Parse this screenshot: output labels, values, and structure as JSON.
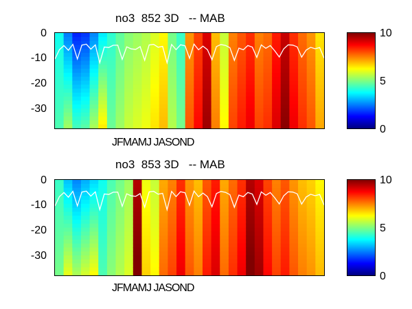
{
  "panels": [
    {
      "title": "no3  852 3D   -- MAB",
      "xlabel": "JFMAMJ JASOND",
      "yticks": [
        "0",
        "-10",
        "-20",
        "-30"
      ],
      "cbar_ticks": [
        "10",
        "5",
        "0"
      ]
    },
    {
      "title": "no3  853 3D   -- MAB",
      "xlabel": "JFMAMJ JASOND",
      "yticks": [
        "0",
        "-10",
        "-20",
        "-30"
      ],
      "cbar_ticks": [
        "10",
        "5",
        "0"
      ]
    }
  ],
  "chart_data": [
    {
      "type": "heatmap",
      "title": "no3  852 3D   -- MAB",
      "xlabel": "JFMAMJ JASOND",
      "ylabel": "",
      "ylim": [
        -37,
        0
      ],
      "yticks": [
        0,
        -10,
        -20,
        -30
      ],
      "colorbar": {
        "range": [
          0,
          10
        ],
        "ticks": [
          0,
          5,
          10
        ],
        "colormap": "jet"
      },
      "x_months": [
        "J",
        "F",
        "M",
        "A",
        "M",
        "J",
        "J",
        "A",
        "S",
        "O",
        "N",
        "D"
      ],
      "column_values_surface": [
        4.2,
        2.5,
        1.6,
        1.8,
        2.6,
        3.6,
        4.5,
        5.0,
        5.4,
        5.6,
        5.8,
        6.2,
        6.6,
        5.2,
        4.6,
        7.6,
        8.4,
        9.4,
        7.2,
        6.0,
        7.8,
        8.2,
        8.6,
        7.8,
        8.0,
        8.8,
        9.6,
        8.6,
        8.0,
        7.6,
        6.8
      ],
      "mixed_layer_line": "white contour"
    },
    {
      "type": "heatmap",
      "title": "no3  853 3D   -- MAB",
      "xlabel": "JFMAMJ JASOND",
      "ylabel": "",
      "ylim": [
        -37,
        0
      ],
      "yticks": [
        0,
        -10,
        -20,
        -30
      ],
      "colorbar": {
        "range": [
          0,
          10
        ],
        "ticks": [
          0,
          5,
          10
        ],
        "colormap": "jet"
      },
      "x_months": [
        "J",
        "F",
        "M",
        "A",
        "M",
        "J",
        "J",
        "A",
        "S",
        "O",
        "N",
        "D"
      ],
      "column_values_surface": [
        4.6,
        3.2,
        2.6,
        3.0,
        3.4,
        4.2,
        4.8,
        5.2,
        5.6,
        9.8,
        6.4,
        6.0,
        7.4,
        7.8,
        8.6,
        7.6,
        7.2,
        8.2,
        8.8,
        7.4,
        8.0,
        8.6,
        9.8,
        9.4,
        8.4,
        7.8,
        8.2,
        7.6,
        7.2,
        7.0,
        6.6
      ],
      "mixed_layer_line": "white contour"
    }
  ]
}
